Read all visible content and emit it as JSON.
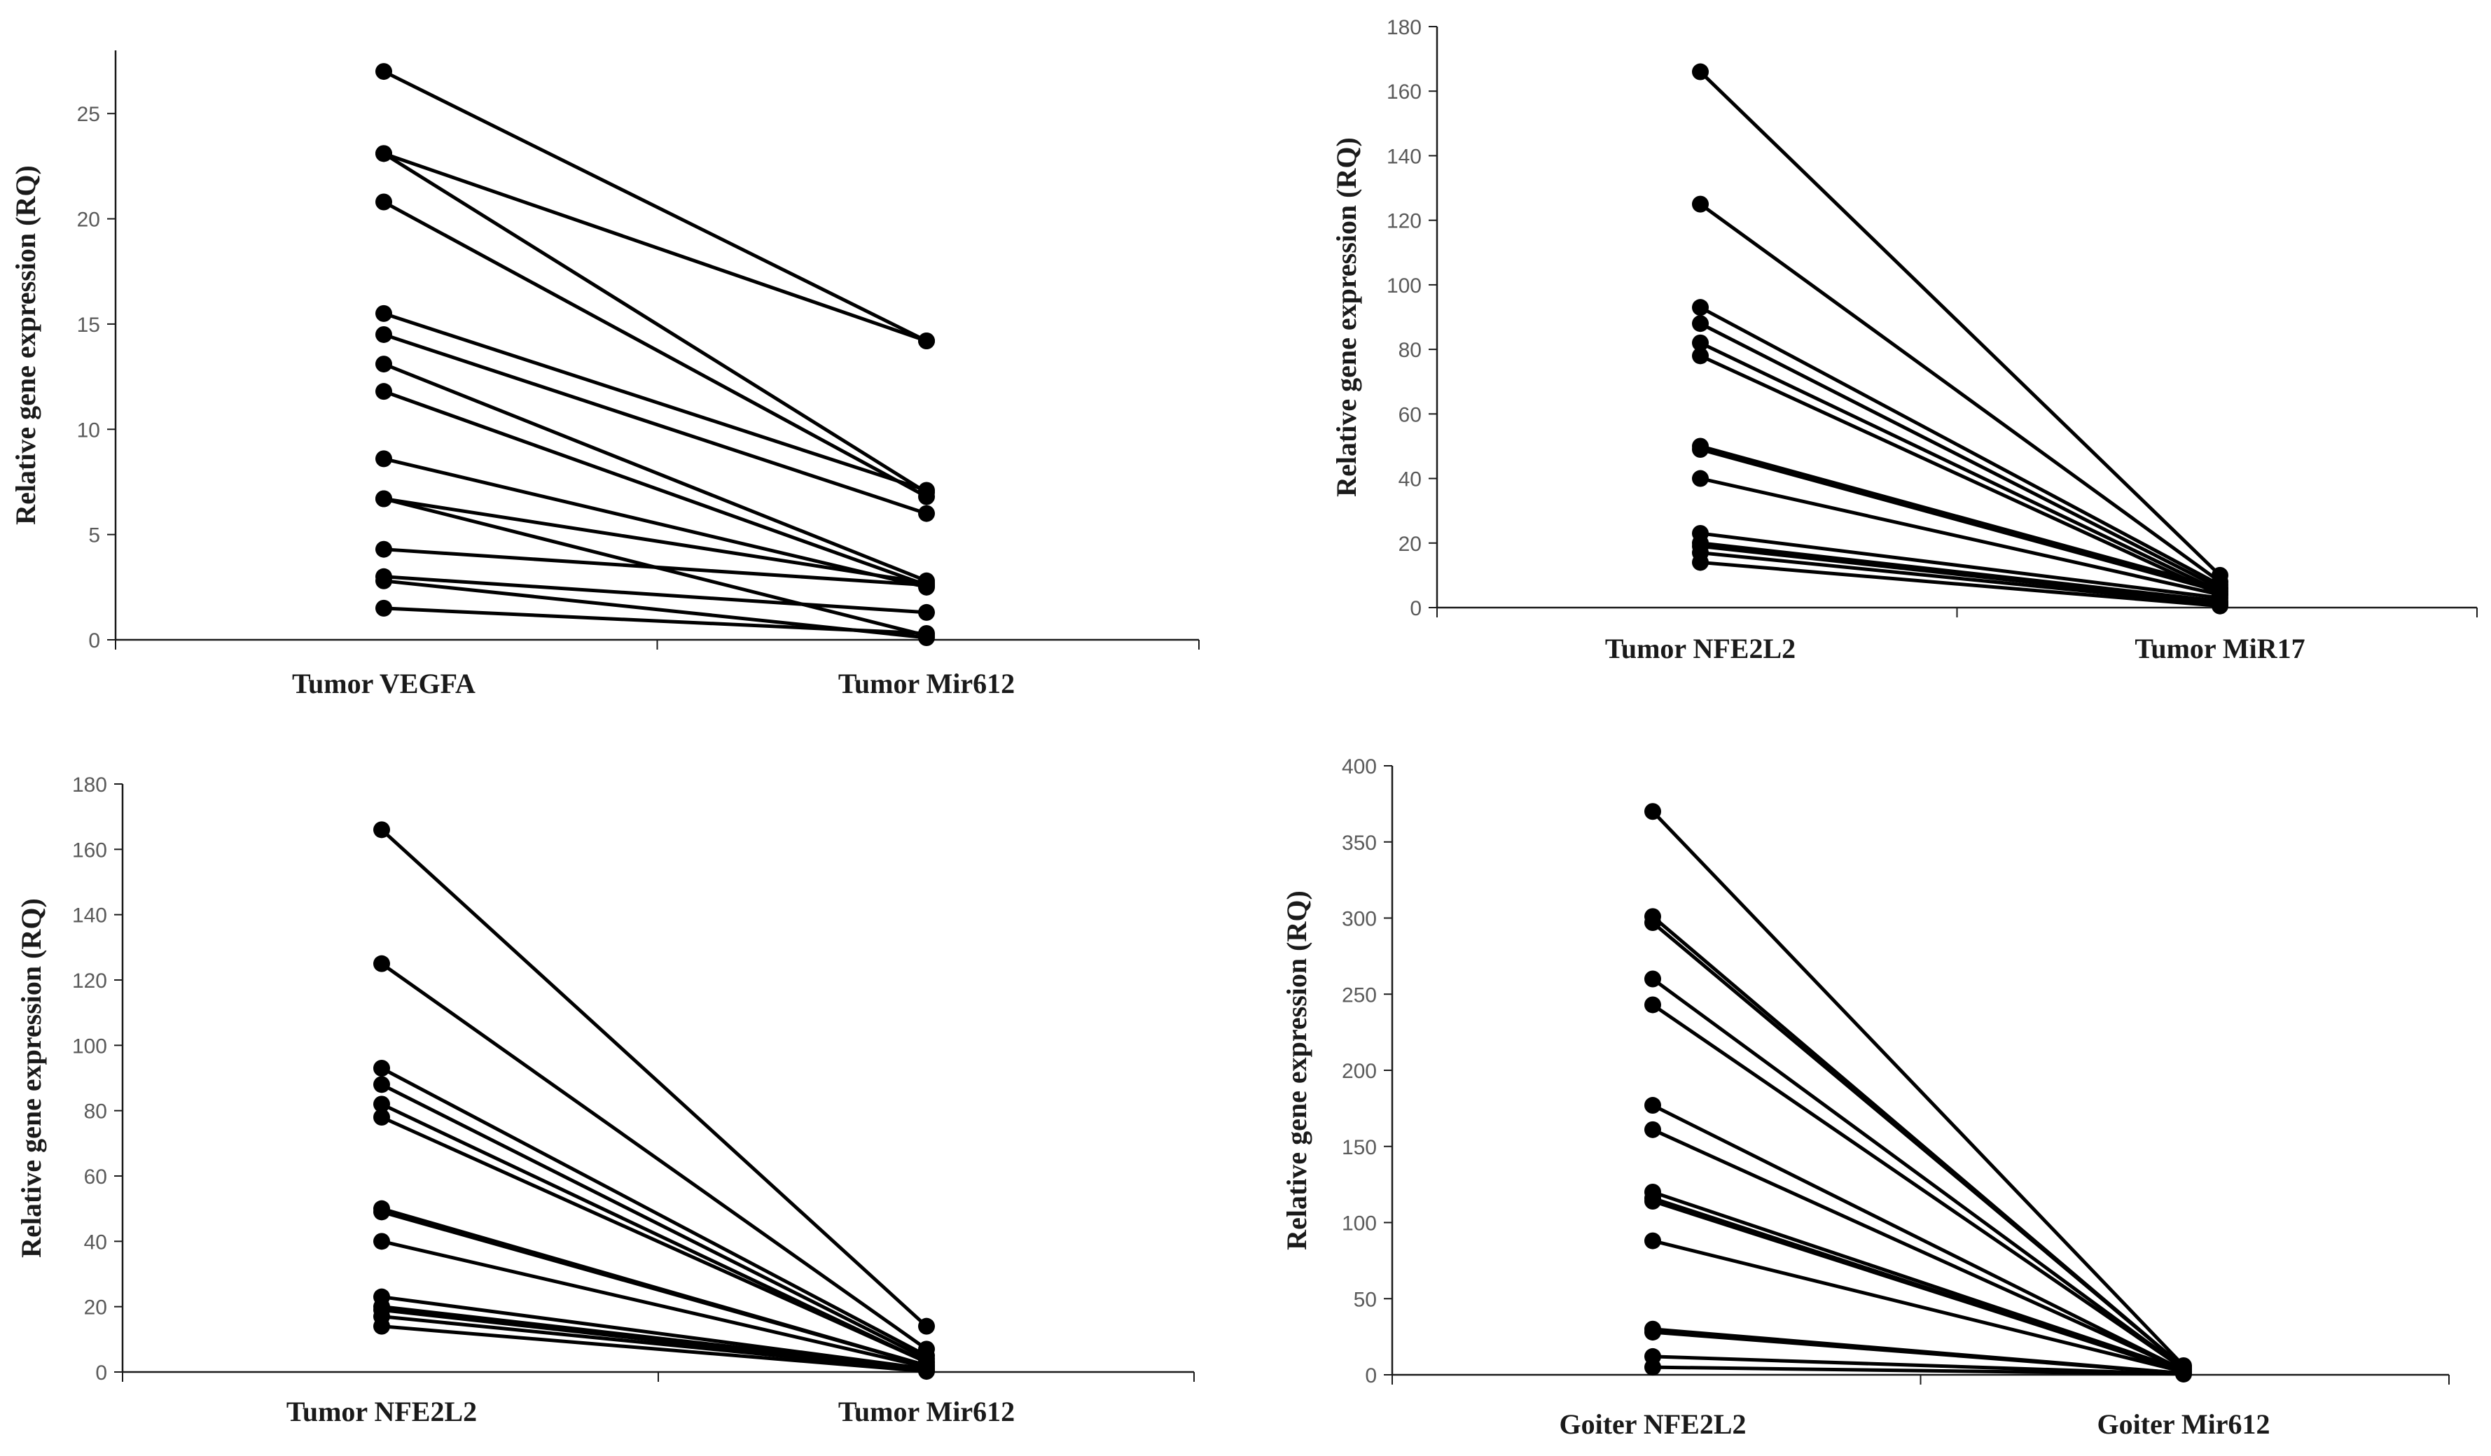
{
  "chart_data": [
    {
      "type": "line",
      "ylabel": "Relative gene expression (RQ)",
      "categories": [
        "Tumor VEGFA",
        "Tumor Mir612"
      ],
      "ylim": [
        0,
        28
      ],
      "yticks": [
        0,
        5,
        10,
        15,
        20,
        25
      ],
      "pairs": [
        [
          27,
          14.2
        ],
        [
          23.1,
          14.2
        ],
        [
          23.1,
          7.0
        ],
        [
          20.8,
          6.8
        ],
        [
          15.5,
          7.1
        ],
        [
          14.5,
          6.0
        ],
        [
          13.1,
          2.8
        ],
        [
          11.8,
          2.6
        ],
        [
          8.6,
          2.5
        ],
        [
          6.7,
          2.7
        ],
        [
          6.7,
          0.2
        ],
        [
          4.3,
          2.6
        ],
        [
          3.0,
          1.3
        ],
        [
          2.8,
          0.1
        ],
        [
          1.5,
          0.3
        ]
      ]
    },
    {
      "type": "line",
      "ylabel": "Relative gene expression (RQ)",
      "categories": [
        "Tumor NFE2L2",
        "Tumor MiR17"
      ],
      "ylim": [
        0,
        180
      ],
      "yticks": [
        0,
        20,
        40,
        60,
        80,
        100,
        120,
        140,
        160,
        180
      ],
      "pairs": [
        [
          166,
          10
        ],
        [
          125,
          8
        ],
        [
          93,
          7
        ],
        [
          88,
          6
        ],
        [
          82,
          5
        ],
        [
          78,
          4
        ],
        [
          50,
          6
        ],
        [
          49,
          5
        ],
        [
          40,
          4
        ],
        [
          23,
          3
        ],
        [
          20,
          2
        ],
        [
          19,
          1.5
        ],
        [
          17,
          1
        ],
        [
          14,
          0.5
        ]
      ]
    },
    {
      "type": "line",
      "ylabel": "Relative gene expression (RQ)",
      "categories": [
        "Tumor NFE2L2",
        "Tumor Mir612"
      ],
      "ylim": [
        0,
        180
      ],
      "yticks": [
        0,
        20,
        40,
        60,
        80,
        100,
        120,
        140,
        160,
        180
      ],
      "pairs": [
        [
          166,
          14
        ],
        [
          125,
          7
        ],
        [
          93,
          5
        ],
        [
          88,
          4
        ],
        [
          82,
          3
        ],
        [
          78,
          3
        ],
        [
          50,
          2
        ],
        [
          49,
          2
        ],
        [
          40,
          1.5
        ],
        [
          23,
          1
        ],
        [
          20,
          1
        ],
        [
          19,
          0.5
        ],
        [
          17,
          0.5
        ],
        [
          14,
          0.2
        ]
      ]
    },
    {
      "type": "line",
      "ylabel": "Relative gene expression (RQ)",
      "categories": [
        "Goiter NFE2L2",
        "Goiter Mir612"
      ],
      "ylim": [
        0,
        400
      ],
      "yticks": [
        0,
        50,
        100,
        150,
        200,
        250,
        300,
        350,
        400
      ],
      "pairs": [
        [
          370,
          6
        ],
        [
          301,
          5
        ],
        [
          297,
          5
        ],
        [
          260,
          4
        ],
        [
          243,
          4
        ],
        [
          177,
          3
        ],
        [
          161,
          3
        ],
        [
          120,
          3
        ],
        [
          116,
          2
        ],
        [
          114,
          2
        ],
        [
          88,
          2
        ],
        [
          30,
          1
        ],
        [
          28,
          1
        ],
        [
          12,
          0.5
        ],
        [
          5,
          0.5
        ]
      ]
    }
  ]
}
